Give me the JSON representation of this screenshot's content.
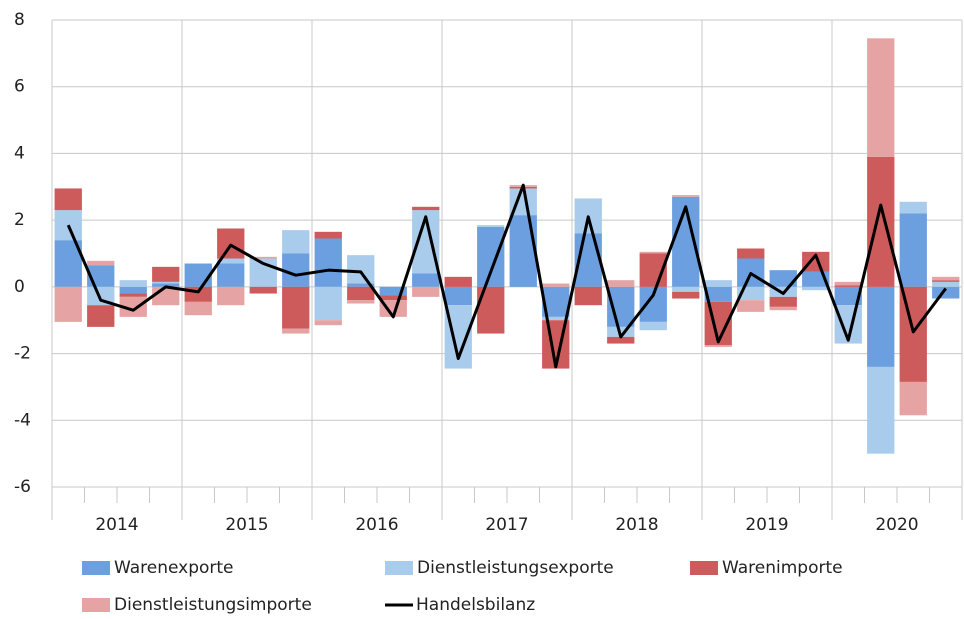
{
  "chart_data": {
    "type": "stacked_bar_line",
    "years": [
      "2014",
      "2015",
      "2016",
      "2017",
      "2018",
      "2019",
      "2020"
    ],
    "ylim": [
      -6,
      8
    ],
    "yticks": [
      -6,
      -4,
      -2,
      0,
      2,
      4,
      6,
      8
    ],
    "grid": true,
    "legend": "bottom",
    "series": [
      {
        "name": "Warenexporte",
        "color": "#6b9fdf",
        "kind": "bar",
        "values": [
          1.4,
          0.65,
          -0.2,
          0.1,
          0.7,
          0.7,
          0,
          1.0,
          1.45,
          0.1,
          -0.25,
          0.4,
          -0.55,
          1.8,
          2.15,
          -0.9,
          1.6,
          -1.2,
          -1.05,
          2.7,
          -0.45,
          0.85,
          0.5,
          0.45,
          -0.55,
          -2.4,
          2.2,
          -0.35
        ]
      },
      {
        "name": "Dienstleistungsexporte",
        "color": "#a9cbec",
        "kind": "bar",
        "values": [
          0.9,
          -0.55,
          0.2,
          0.05,
          0,
          0.15,
          0.85,
          0.7,
          -1.0,
          0.85,
          0,
          1.9,
          -1.9,
          0.05,
          0.8,
          -0.1,
          1.05,
          -0.3,
          -0.25,
          -0.15,
          0.2,
          -0.4,
          -0.3,
          -0.1,
          -1.15,
          -2.6,
          0.35,
          0.15
        ]
      },
      {
        "name": "Warenimporte",
        "color": "#cd5b5b",
        "kind": "bar",
        "values": [
          0.65,
          -0.65,
          -0.1,
          0.45,
          -0.45,
          0.9,
          -0.2,
          -1.25,
          0.2,
          -0.4,
          -0.15,
          0.1,
          0.3,
          -1.4,
          0.05,
          -1.45,
          -0.55,
          -0.2,
          1.0,
          -0.2,
          -1.3,
          0.3,
          -0.3,
          0.6,
          0.05,
          3.9,
          -2.85,
          0.05
        ]
      },
      {
        "name": "Dienstleistungsimporte",
        "color": "#e6a3a3",
        "kind": "bar",
        "values": [
          -1.05,
          0.13,
          -0.6,
          -0.55,
          -0.4,
          -0.55,
          0.05,
          -0.15,
          -0.15,
          -0.1,
          -0.5,
          -0.3,
          0,
          0,
          0.05,
          0.1,
          0,
          0.2,
          0.05,
          0.05,
          -0.05,
          -0.35,
          -0.1,
          0,
          0.1,
          3.55,
          -1.0,
          0.1
        ]
      },
      {
        "name": "Handelsbilanz",
        "color": "#000000",
        "kind": "line",
        "values": [
          1.85,
          -0.4,
          -0.7,
          0,
          -0.15,
          1.25,
          0.7,
          0.35,
          0.5,
          0.45,
          -0.9,
          2.1,
          -2.15,
          0.45,
          3.05,
          -2.4,
          2.1,
          -1.5,
          -0.25,
          2.4,
          -1.65,
          0.4,
          -0.2,
          0.95,
          -1.6,
          2.45,
          -1.35,
          -0.05
        ]
      }
    ]
  }
}
